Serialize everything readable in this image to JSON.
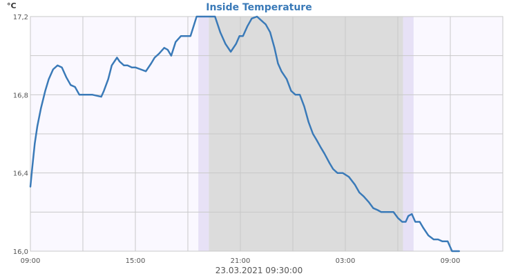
{
  "chart_data": {
    "type": "line",
    "title": "Inside Temperature",
    "ylabel": "°C",
    "footer": "23.03.2021 09:30:00",
    "x_start": "09:00",
    "x_end": "10:45",
    "x_range_hours": [
      0,
      27
    ],
    "ylim": [
      16.0,
      17.2
    ],
    "y_ticks": [
      {
        "value": 16.0,
        "label": "16,0"
      },
      {
        "value": 16.4,
        "label": "16,4"
      },
      {
        "value": 16.8,
        "label": "16,8"
      },
      {
        "value": 17.2,
        "label": "17,2"
      }
    ],
    "x_ticks": [
      {
        "hours": 0,
        "label": "09:00"
      },
      {
        "hours": 6,
        "label": "15:00"
      },
      {
        "hours": 12,
        "label": "21:00"
      },
      {
        "hours": 18,
        "label": "03:00"
      },
      {
        "hours": 24,
        "label": "09:00"
      }
    ],
    "grid": true,
    "night_band": {
      "start_hours": 10.2,
      "end_hours": 21.3,
      "fade_hours": 0.6
    },
    "colors": {
      "line": "#3a7ab8",
      "plot_bg": "#faf8ff",
      "night": "#dcdcdc",
      "twilight": "#e7e1f6",
      "grid": "#c8c8c8"
    },
    "series": [
      {
        "x_hours": [
          0,
          0.1,
          0.25,
          0.4,
          0.6,
          0.85,
          1.05,
          1.3,
          1.55,
          1.8,
          2.05,
          2.3,
          2.55,
          2.8,
          3.05,
          3.3,
          3.55,
          4.05,
          4.2,
          4.45,
          4.65,
          4.95,
          5.1,
          5.35,
          5.55,
          5.8,
          6.0,
          6.3,
          6.6,
          6.9,
          7.1,
          7.35,
          7.65,
          7.85,
          8.05,
          8.3,
          8.6,
          8.85,
          9.15,
          9.5,
          9.75,
          9.95,
          10.25,
          10.55,
          10.85,
          11.15,
          11.45,
          11.75,
          11.95,
          12.15,
          12.4,
          12.65,
          12.95,
          13.2,
          13.45,
          13.7,
          13.95,
          14.15,
          14.35,
          14.65,
          14.9,
          15.15,
          15.4,
          15.65,
          15.9,
          16.15,
          16.35,
          16.6,
          16.8,
          17.1,
          17.3,
          17.55,
          17.85,
          18.2,
          18.55,
          18.8,
          19.05,
          19.35,
          19.6,
          19.85,
          20.05,
          20.2,
          20.45,
          20.75,
          21.0,
          21.25,
          21.45,
          21.6,
          21.8,
          22.0,
          22.25,
          22.45,
          22.75,
          23.05,
          23.3,
          23.55,
          23.85,
          24.1,
          24.3,
          24.5
        ],
        "values": [
          16.33,
          16.42,
          16.55,
          16.64,
          16.73,
          16.82,
          16.88,
          16.93,
          16.95,
          16.94,
          16.89,
          16.85,
          16.84,
          16.8,
          16.8,
          16.8,
          16.8,
          16.79,
          16.82,
          16.88,
          16.95,
          16.99,
          16.97,
          16.95,
          16.95,
          16.94,
          16.94,
          16.93,
          16.92,
          16.96,
          16.99,
          17.01,
          17.04,
          17.03,
          17.0,
          17.07,
          17.1,
          17.1,
          17.1,
          17.2,
          17.2,
          17.2,
          17.2,
          17.2,
          17.12,
          17.06,
          17.02,
          17.06,
          17.1,
          17.1,
          17.15,
          17.19,
          17.2,
          17.18,
          17.16,
          17.12,
          17.04,
          16.96,
          16.92,
          16.88,
          16.82,
          16.8,
          16.8,
          16.74,
          16.66,
          16.6,
          16.57,
          16.53,
          16.5,
          16.45,
          16.42,
          16.4,
          16.4,
          16.38,
          16.34,
          16.3,
          16.28,
          16.25,
          16.22,
          16.21,
          16.2,
          16.2,
          16.2,
          16.2,
          16.17,
          16.15,
          16.15,
          16.18,
          16.19,
          16.15,
          16.15,
          16.12,
          16.08,
          16.06,
          16.06,
          16.05,
          16.05,
          16.0,
          16.0,
          16.0
        ]
      }
    ]
  }
}
